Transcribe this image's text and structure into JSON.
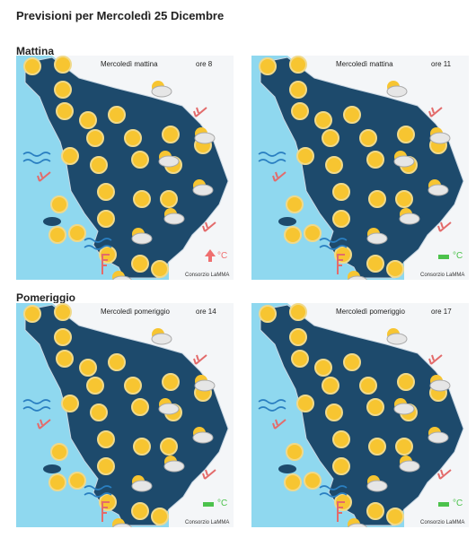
{
  "header": {
    "title": "Previsioni per Mercoledì 25 Dicembre"
  },
  "sections": [
    {
      "title": "Mattina",
      "maps": [
        {
          "label": "Mercoledì mattina",
          "time": "ore 8",
          "credit": "Consorzio LaMMA",
          "unit": "°C"
        },
        {
          "label": "Mercoledì mattina",
          "time": "ore 11",
          "credit": "Consorzio LaMMA",
          "unit": "°C"
        }
      ]
    },
    {
      "title": "Pomeriggio",
      "maps": [
        {
          "label": "Mercoledì pomeriggio",
          "time": "ore 14",
          "credit": "Consorzio LaMMA",
          "unit": "°C"
        },
        {
          "label": "Mercoledì pomeriggio",
          "time": "ore 17",
          "credit": "Consorzio LaMMA",
          "unit": "°C"
        }
      ]
    }
  ]
}
